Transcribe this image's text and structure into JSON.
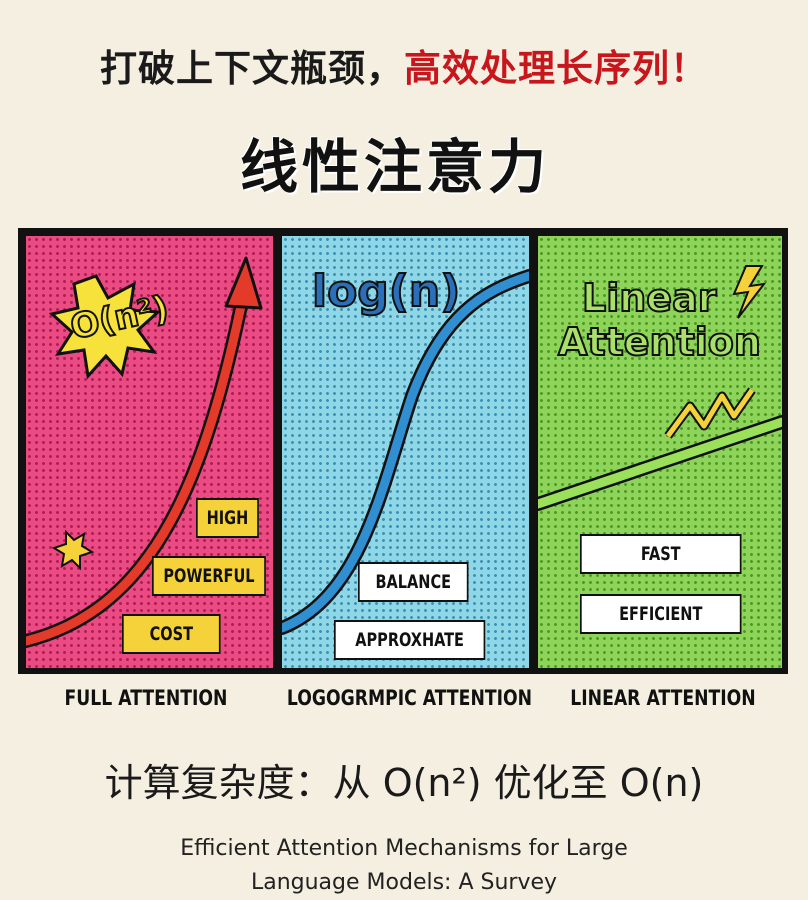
{
  "headline": {
    "part1": "打破上下文瓶颈，",
    "part2": "高效处理长序列！"
  },
  "title": "线性注意力",
  "panels": [
    {
      "math_label": "O(n²)",
      "tags": [
        "HIGH",
        "POWERFUL",
        "COST"
      ],
      "caption": "FULL ATTENTION",
      "color": "#e94b82"
    },
    {
      "math_label": "log(n)",
      "tags": [
        "BALANCE",
        "APPROXHATE"
      ],
      "caption": "LOGOGRMPIC ATTENTION",
      "color": "#8fd6e6"
    },
    {
      "math_label_line1": "Linear",
      "math_label_line2": "Attention",
      "tags": [
        "FAST",
        "EFFICIENT"
      ],
      "caption": "LINEAR ATTENTION",
      "color": "#8ed35a"
    }
  ],
  "complexity": "计算复杂度：从 O(n²) 优化至 O(n)",
  "caption": {
    "line1": "Efficient Attention Mechanisms for Large",
    "line2": "Language Models: A Survey"
  }
}
